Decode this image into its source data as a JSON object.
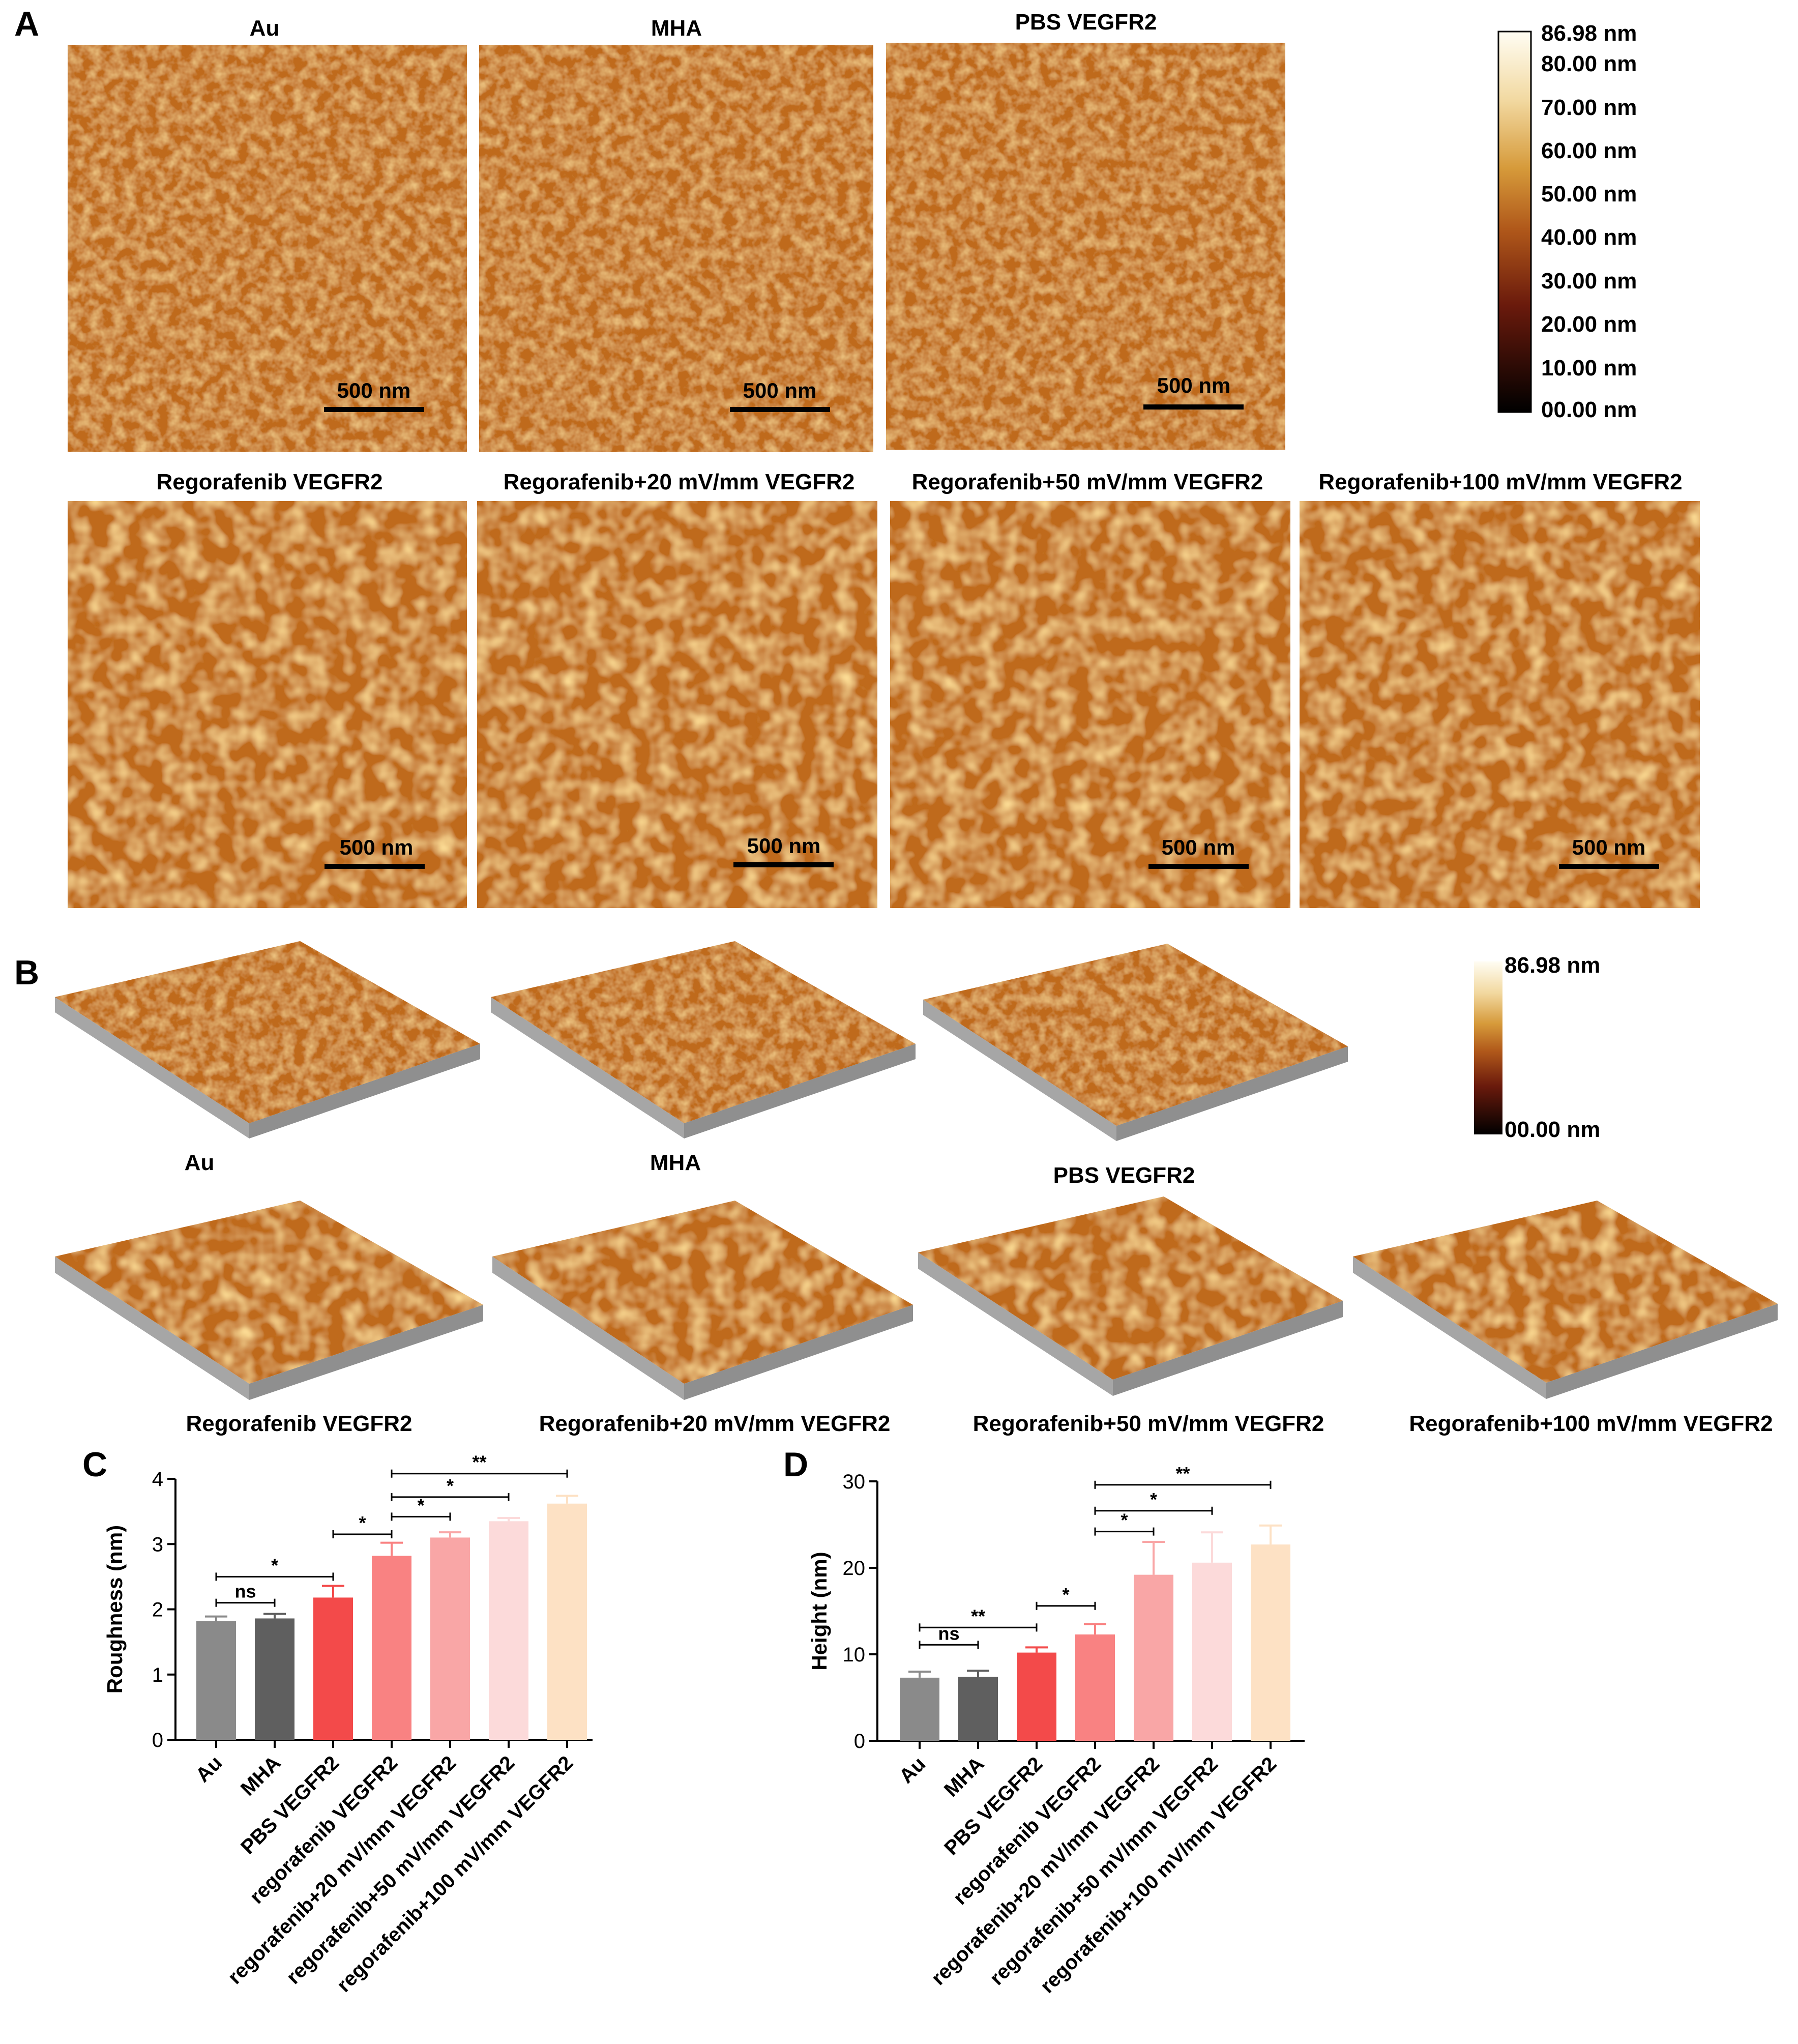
{
  "panels": {
    "A": {
      "letter": "A",
      "titles": [
        "Au",
        "MHA",
        "PBS VEGFR2",
        "Regorafenib VEGFR2",
        "Regorafenib+20 mV/mm VEGFR2",
        "Regorafenib+50 mV/mm VEGFR2",
        "Regorafenib+100 mV/mm VEGFR2"
      ],
      "scalebar_label": "500 nm",
      "colorbar": {
        "max_label": "86.98 nm",
        "ticks": [
          "80.00 nm",
          "70.00 nm",
          "60.00 nm",
          "50.00 nm",
          "40.00 nm",
          "30.00 nm",
          "20.00 nm",
          "10.00 nm",
          "00.00 nm"
        ]
      }
    },
    "B": {
      "letter": "B",
      "labels": [
        "Au",
        "MHA",
        "PBS VEGFR2",
        "Regorafenib VEGFR2",
        "Regorafenib+20 mV/mm VEGFR2",
        "Regorafenib+50 mV/mm VEGFR2",
        "Regorafenib+100 mV/mm VEGFR2"
      ],
      "colorbar": {
        "max_label": "86.98 nm",
        "min_label": "00.00 nm"
      }
    }
  },
  "colors": {
    "afm_base": "#bf6a1d",
    "afm_light": "#e7a23f",
    "afm_dark": "#8f4710",
    "substrate_gray": "#a6a6a6",
    "bars": [
      "#8a8a8a",
      "#5f5f5f",
      "#f34a4a",
      "#f98282",
      "#f9a6a6",
      "#fcdada",
      "#fde1c4"
    ]
  },
  "chart_data": [
    {
      "type": "bar",
      "panel": "C",
      "ylabel": "Roughness (nm)",
      "ylim": [
        0,
        4
      ],
      "yticks": [
        "0",
        "1",
        "2",
        "3",
        "4"
      ],
      "categories": [
        "Au",
        "MHA",
        "PBS VEGFR2",
        "regorafenib VEGFR2",
        "regorafenib+20 mV/mm VEGFR2",
        "regorafenib+50 mV/mm VEGFR2",
        "regorafenib+100 mV/mm VEGFR2"
      ],
      "values": [
        1.82,
        1.86,
        2.18,
        2.82,
        3.1,
        3.35,
        3.62
      ],
      "errors": [
        0.07,
        0.07,
        0.18,
        0.2,
        0.08,
        0.05,
        0.12
      ],
      "significance": [
        {
          "from": 0,
          "to": 1,
          "label": "ns",
          "y": 2.1
        },
        {
          "from": 0,
          "to": 2,
          "label": "*",
          "y": 2.5
        },
        {
          "from": 2,
          "to": 3,
          "label": "*",
          "y": 3.15
        },
        {
          "from": 3,
          "to": 4,
          "label": "*",
          "y": 3.42
        },
        {
          "from": 3,
          "to": 5,
          "label": "*",
          "y": 3.72
        },
        {
          "from": 3,
          "to": 6,
          "label": "**",
          "y": 4.08
        }
      ]
    },
    {
      "type": "bar",
      "panel": "D",
      "ylabel": "Height (nm)",
      "ylim": [
        0,
        30
      ],
      "yticks": [
        "0",
        "10",
        "20",
        "30"
      ],
      "categories": [
        "Au",
        "MHA",
        "PBS VEGFR2",
        "regorafenib VEGFR2",
        "regorafenib+20 mV/mm VEGFR2",
        "regorafenib+50 mV/mm VEGFR2",
        "regorafenib+100 mV/mm VEGFR2"
      ],
      "values": [
        7.3,
        7.4,
        10.2,
        12.3,
        19.2,
        20.6,
        22.7
      ],
      "errors": [
        0.7,
        0.7,
        0.6,
        1.2,
        3.8,
        3.5,
        2.2
      ],
      "significance": [
        {
          "from": 0,
          "to": 1,
          "label": "ns",
          "y": 11.1
        },
        {
          "from": 0,
          "to": 2,
          "label": "**",
          "y": 13.1
        },
        {
          "from": 2,
          "to": 3,
          "label": "*",
          "y": 15.6
        },
        {
          "from": 3,
          "to": 4,
          "label": "*",
          "y": 24.2
        },
        {
          "from": 3,
          "to": 5,
          "label": "*",
          "y": 26.6
        },
        {
          "from": 3,
          "to": 6,
          "label": "**",
          "y": 29.6
        }
      ]
    }
  ]
}
